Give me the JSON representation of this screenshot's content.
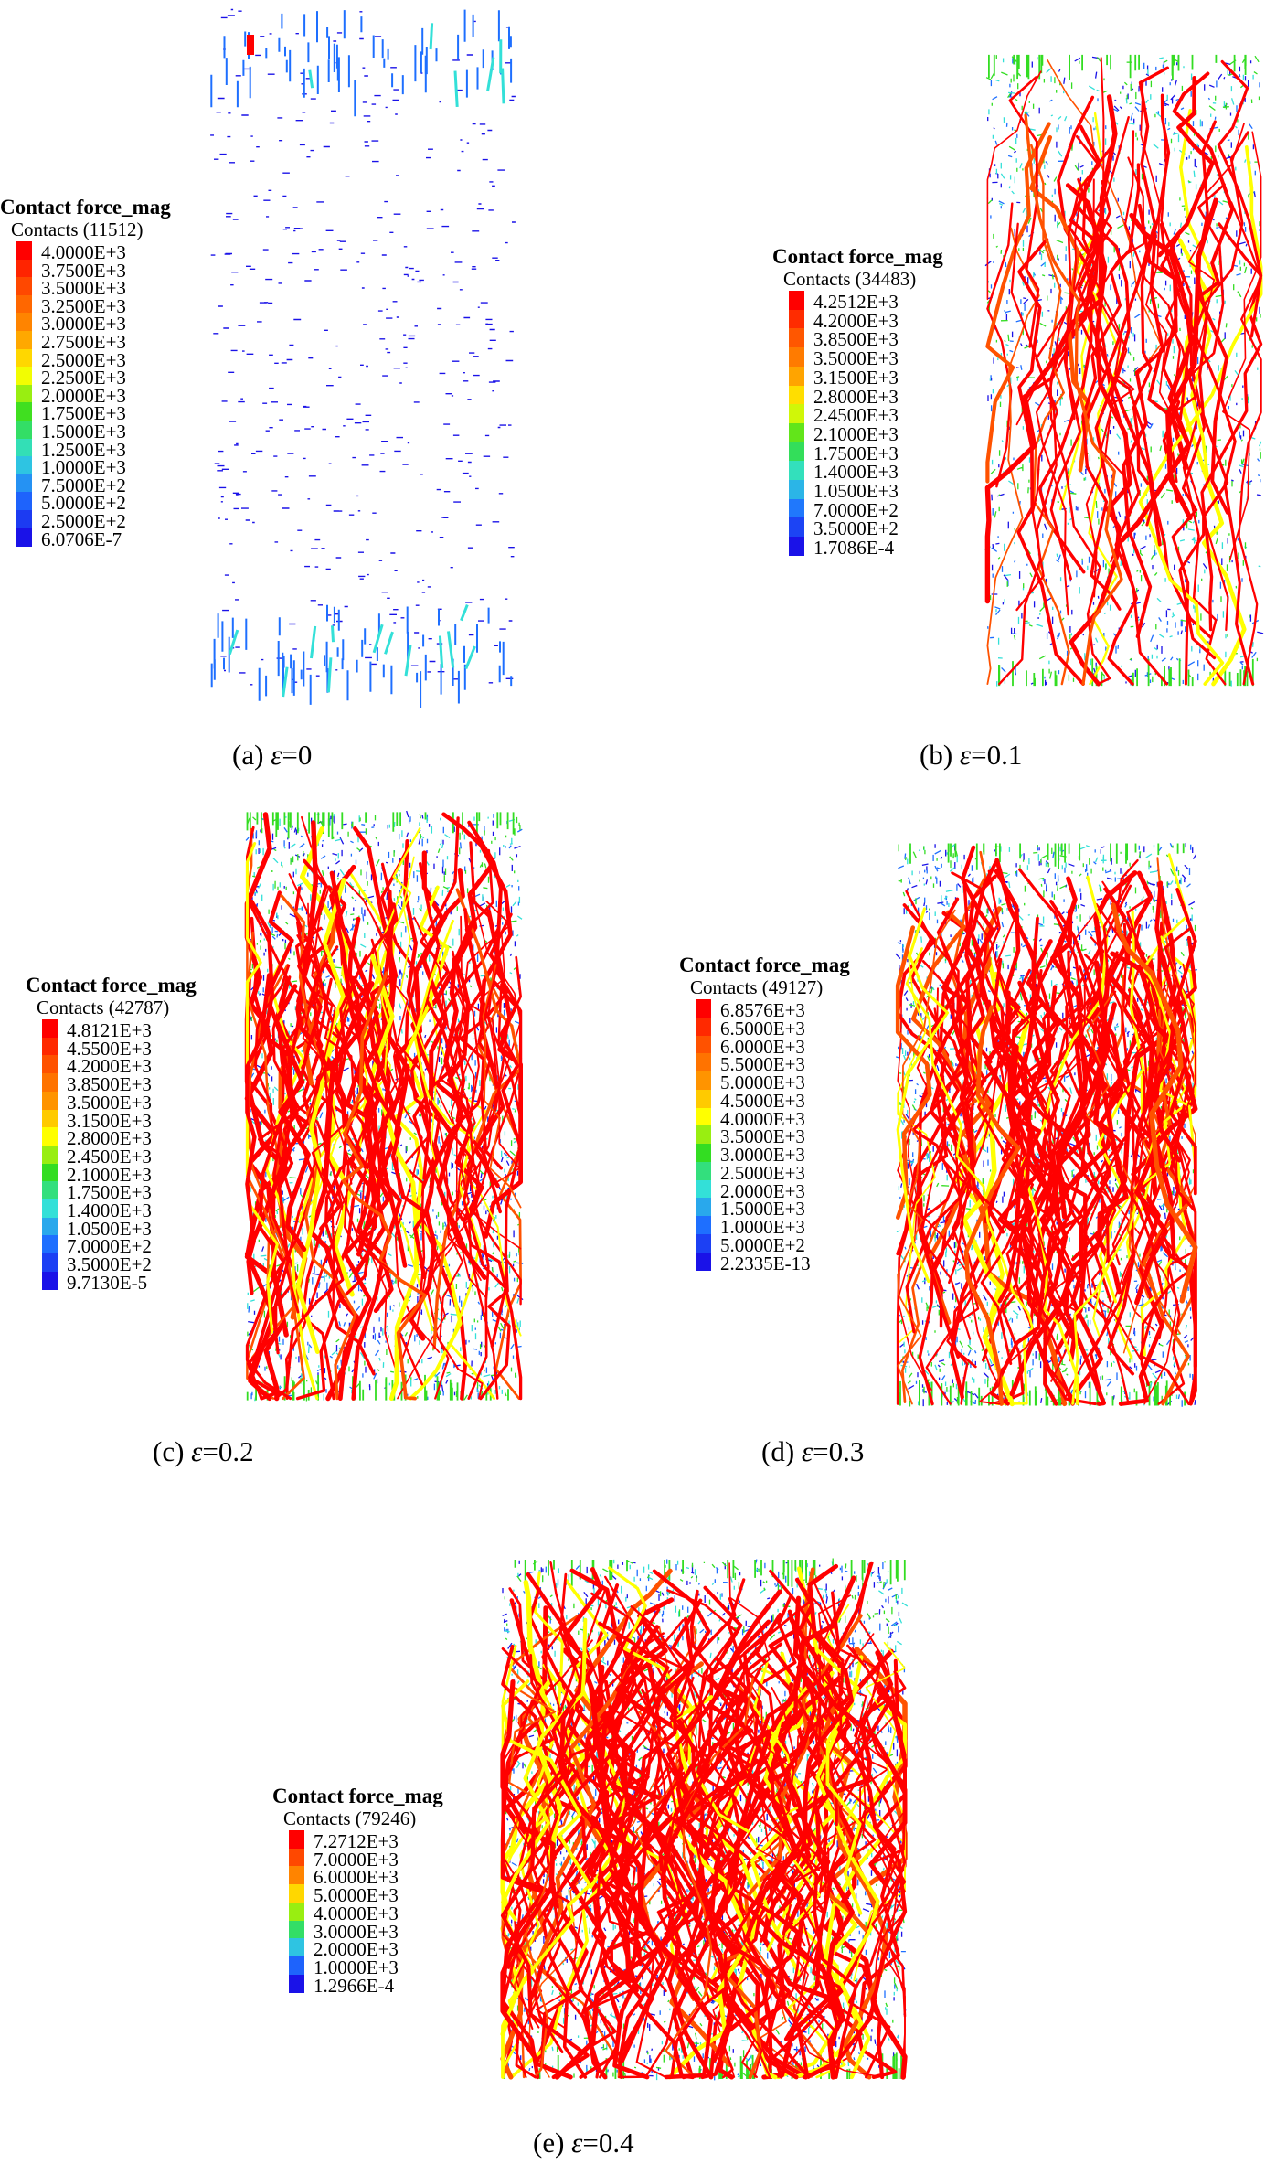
{
  "colors": {
    "red": "#ff0000",
    "orange_red": "#ff5200",
    "orange": "#ff9400",
    "yellow": "#ffff00",
    "green": "#33dd22",
    "cyan": "#33e0d8",
    "blue": "#1e6fff",
    "dark_blue": "#1a12e8"
  },
  "panels": [
    {
      "id": "a",
      "caption_prefix": "(a) ",
      "caption_symbol": "ε",
      "caption_value": "=0",
      "legend_title": "Contact force_mag",
      "legend_count": "Contacts (11512)",
      "legend_labels": [
        "4.0000E+3",
        "3.7500E+3",
        "3.5000E+3",
        "3.2500E+3",
        "3.0000E+3",
        "2.7500E+3",
        "2.5000E+3",
        "2.2500E+3",
        "2.0000E+3",
        "1.7500E+3",
        "1.5000E+3",
        "1.2500E+3",
        "1.0000E+3",
        "7.5000E+2",
        "5.0000E+2",
        "2.5000E+2",
        "6.0706E-7"
      ],
      "density": 0.05
    },
    {
      "id": "b",
      "caption_prefix": "(b) ",
      "caption_symbol": "ε",
      "caption_value": "=0.1",
      "legend_title": "Contact force_mag",
      "legend_count": "Contacts (34483)",
      "legend_labels": [
        "4.2512E+3",
        "4.2000E+3",
        "3.8500E+3",
        "3.5000E+3",
        "3.1500E+3",
        "2.8000E+3",
        "2.4500E+3",
        "2.1000E+3",
        "1.7500E+3",
        "1.4000E+3",
        "1.0500E+3",
        "7.0000E+2",
        "3.5000E+2",
        "1.7086E-4"
      ],
      "density": 0.45
    },
    {
      "id": "c",
      "caption_prefix": "(c) ",
      "caption_symbol": "ε",
      "caption_value": "=0.2",
      "legend_title": "Contact force_mag",
      "legend_count": "Contacts (42787)",
      "legend_labels": [
        "4.8121E+3",
        "4.5500E+3",
        "4.2000E+3",
        "3.8500E+3",
        "3.5000E+3",
        "3.1500E+3",
        "2.8000E+3",
        "2.4500E+3",
        "2.1000E+3",
        "1.7500E+3",
        "1.4000E+3",
        "1.0500E+3",
        "7.0000E+2",
        "3.5000E+2",
        "9.7130E-5"
      ],
      "density": 0.75
    },
    {
      "id": "d",
      "caption_prefix": "(d) ",
      "caption_symbol": "ε",
      "caption_value": "=0.3",
      "legend_title": "Contact force_mag",
      "legend_count": "Contacts (49127)",
      "legend_labels": [
        "6.8576E+3",
        "6.5000E+3",
        "6.0000E+3",
        "5.5000E+3",
        "5.0000E+3",
        "4.5000E+3",
        "4.0000E+3",
        "3.5000E+3",
        "3.0000E+3",
        "2.5000E+3",
        "2.0000E+3",
        "1.5000E+3",
        "1.0000E+3",
        "5.0000E+2",
        "2.2335E-13"
      ],
      "density": 0.82
    },
    {
      "id": "e",
      "caption_prefix": "(e) ",
      "caption_symbol": "ε",
      "caption_value": "=0.4",
      "legend_title": "Contact force_mag",
      "legend_count": "Contacts (79246)",
      "legend_labels": [
        "7.2712E+3",
        "7.0000E+3",
        "6.0000E+3",
        "5.0000E+3",
        "4.0000E+3",
        "3.0000E+3",
        "2.0000E+3",
        "1.0000E+3",
        "1.2966E-4"
      ],
      "density": 1.0
    }
  ]
}
